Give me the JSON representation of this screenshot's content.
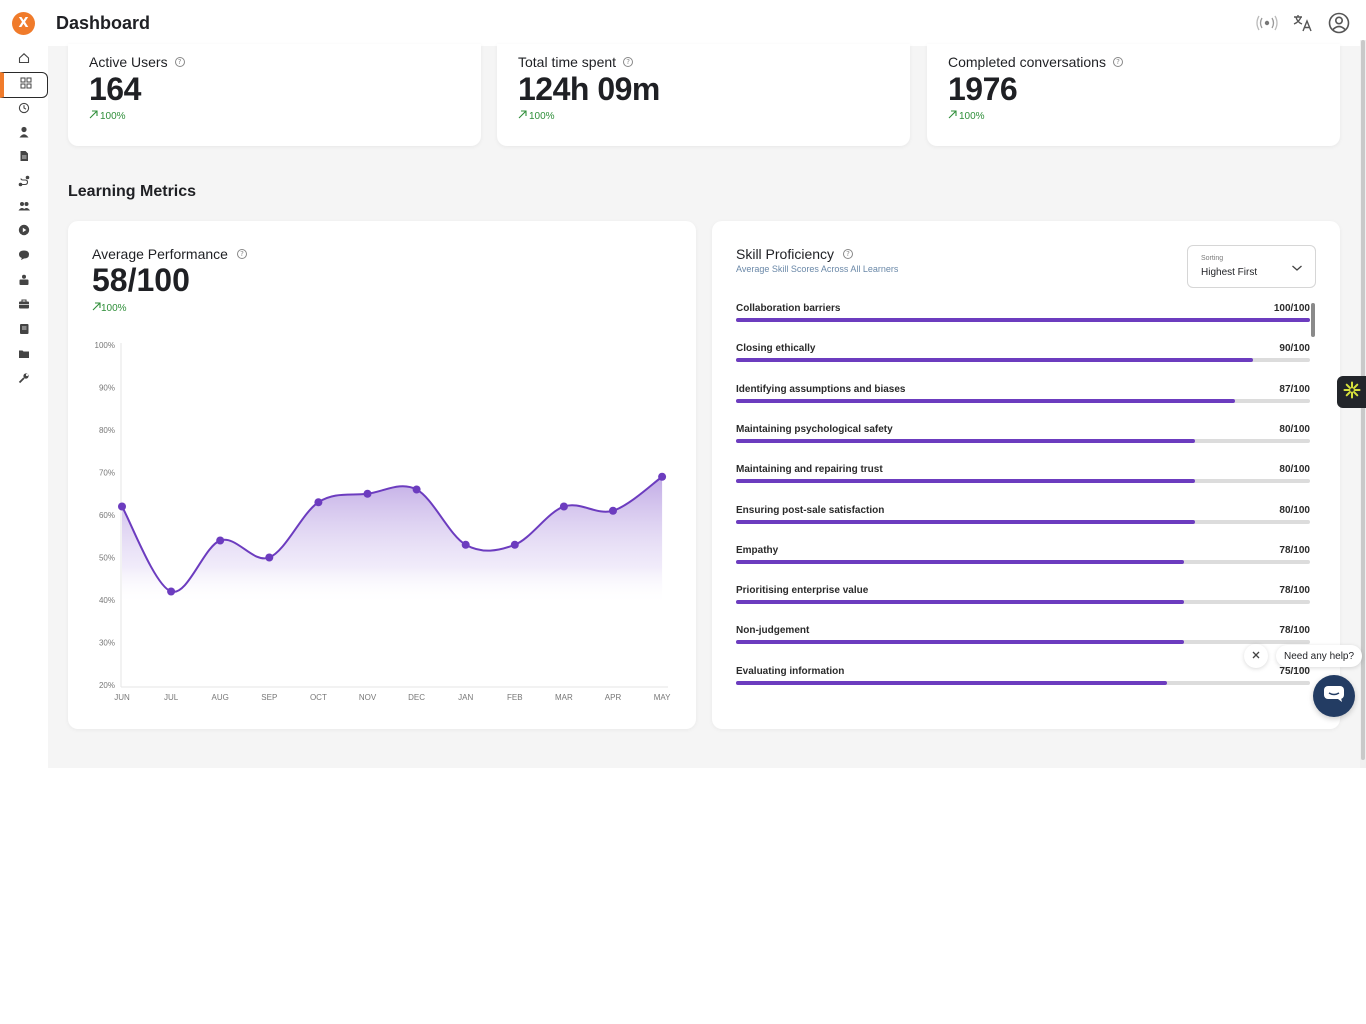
{
  "header": {
    "title": "Dashboard",
    "logo_glyph": "X"
  },
  "icons": {
    "top": [
      "broadcast-icon",
      "translate-icon",
      "account-icon"
    ],
    "sidebar": [
      "home-icon",
      "dashboard-grid-icon",
      "history-icon",
      "user-icon",
      "document-icon",
      "pathway-icon",
      "team-icon",
      "play-icon",
      "chat-icon",
      "roles-icon",
      "briefcase-icon",
      "book-icon",
      "folder-icon",
      "wrench-icon"
    ]
  },
  "colors": {
    "accent": "#6c3cbf",
    "brand": "#f07b2b",
    "positive": "#2f8f3a",
    "chat": "#233c63"
  },
  "stats": [
    {
      "label": "Active Users",
      "value": "164",
      "delta": "100%"
    },
    {
      "label": "Total time spent",
      "value": "124h 09m",
      "delta": "100%"
    },
    {
      "label": "Completed conversations",
      "value": "1976",
      "delta": "100%"
    }
  ],
  "learning": {
    "section_title": "Learning Metrics",
    "performance": {
      "label": "Average Performance",
      "value": "58/100",
      "delta": "100%"
    },
    "skills": {
      "title": "Skill Proficiency",
      "subtitle": "Average Skill Scores Across All Learners",
      "sorting_caption": "Sorting",
      "sorting_value": "Highest First",
      "items": [
        {
          "name": "Collaboration barriers",
          "score": "100/100",
          "value": 100
        },
        {
          "name": "Closing ethically",
          "score": "90/100",
          "value": 90
        },
        {
          "name": "Identifying assumptions and biases",
          "score": "87/100",
          "value": 87
        },
        {
          "name": "Maintaining psychological safety",
          "score": "80/100",
          "value": 80
        },
        {
          "name": "Maintaining and repairing trust",
          "score": "80/100",
          "value": 80
        },
        {
          "name": "Ensuring post-sale satisfaction",
          "score": "80/100",
          "value": 80
        },
        {
          "name": "Empathy",
          "score": "78/100",
          "value": 78
        },
        {
          "name": "Prioritising enterprise value",
          "score": "78/100",
          "value": 78
        },
        {
          "name": "Non-judgement",
          "score": "78/100",
          "value": 78
        },
        {
          "name": "Evaluating information",
          "score": "75/100",
          "value": 75
        }
      ]
    }
  },
  "chart_data": {
    "type": "area",
    "categories": [
      "JUN",
      "JUL",
      "AUG",
      "SEP",
      "OCT",
      "NOV",
      "DEC",
      "JAN",
      "FEB",
      "MAR",
      "APR",
      "MAY"
    ],
    "values": [
      62,
      42,
      54,
      50,
      63,
      65,
      66,
      53,
      53,
      62,
      61,
      69
    ],
    "yticks": [
      "20%",
      "30%",
      "40%",
      "50%",
      "60%",
      "70%",
      "80%",
      "90%",
      "100%"
    ],
    "ylim": [
      20,
      100
    ],
    "grid": false
  },
  "widget": {
    "help_text": "Need any help?"
  }
}
